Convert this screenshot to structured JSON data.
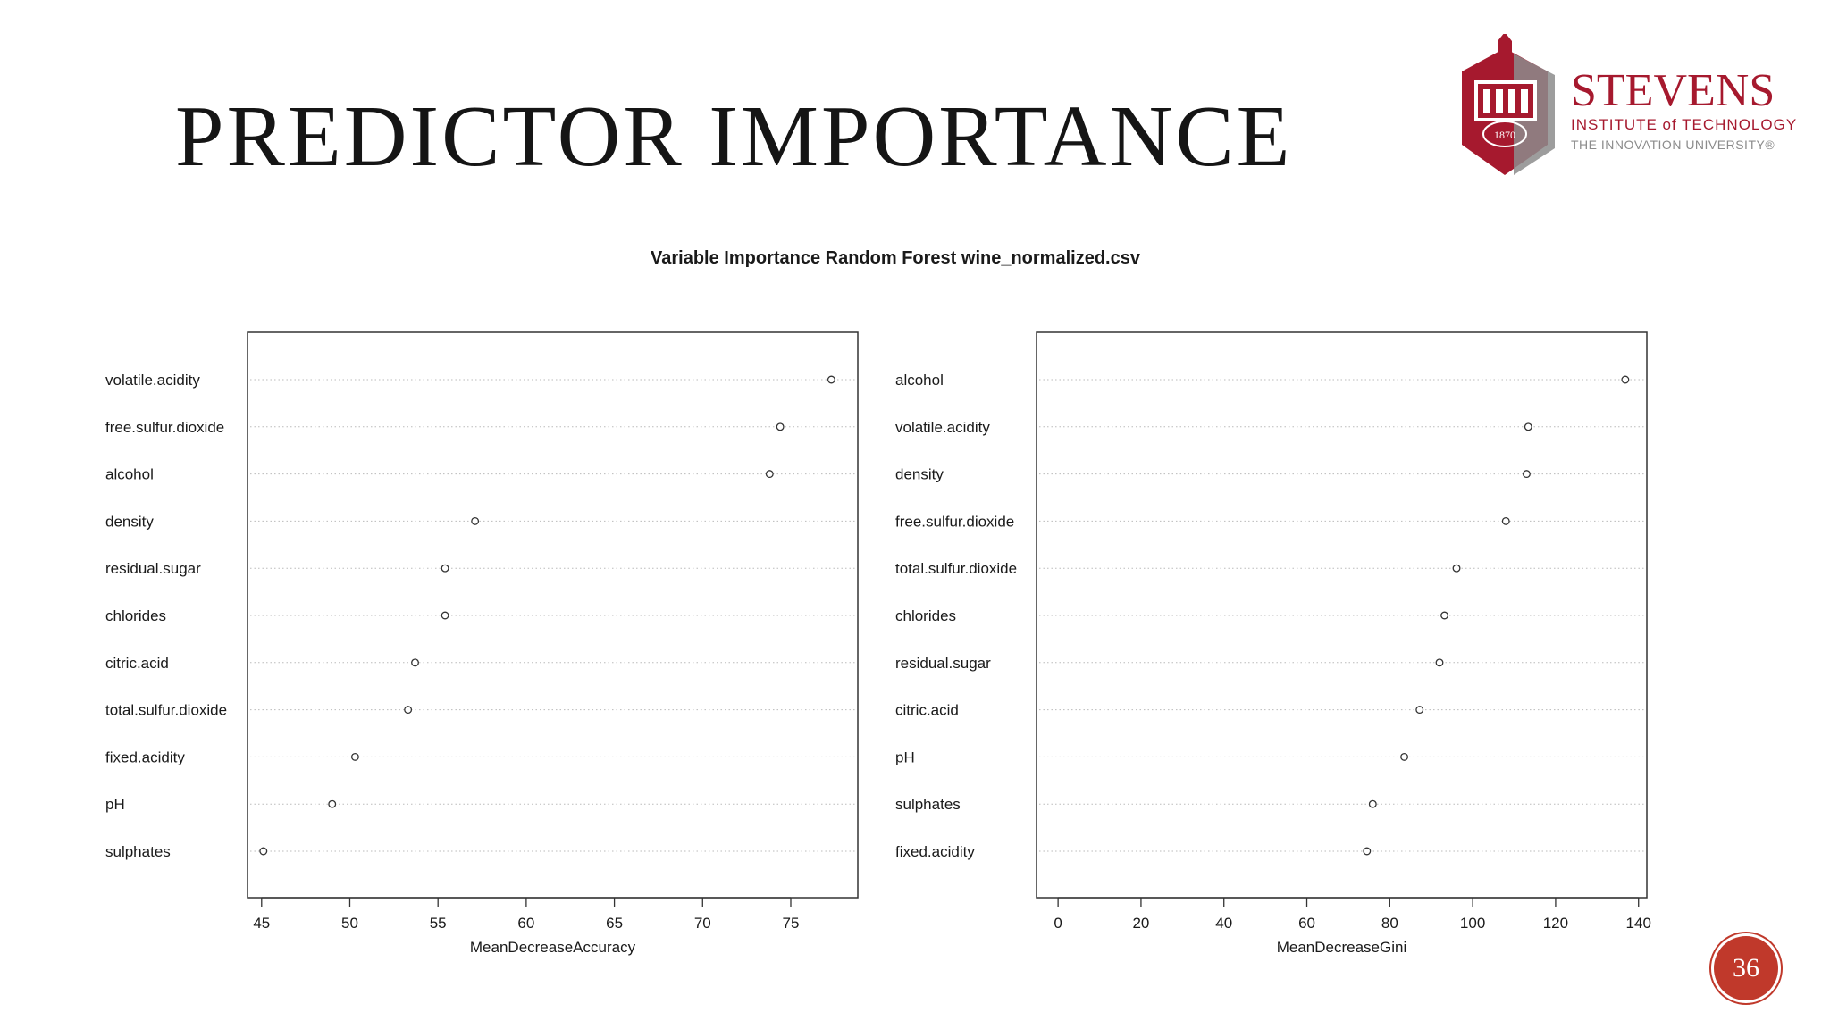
{
  "slide": {
    "title": "PREDICTOR IMPORTANCE",
    "page_number": "36"
  },
  "logo": {
    "name": "STEVENS",
    "line1": "INSTITUTE of TECHNOLOGY",
    "line2": "THE INNOVATION UNIVERSITY®",
    "year": "1870",
    "brand_color": "#a6192e",
    "gray_color": "#8c8c8c"
  },
  "colors": {
    "badge": "#c0392b",
    "title": "#151515"
  },
  "chart_title": "Variable Importance Random Forest wine_normalized.csv",
  "chart_data": [
    {
      "type": "scatter",
      "subtype": "dotchart",
      "title": "Variable Importance Random Forest wine_normalized.csv",
      "xlabel": "MeanDecreaseAccuracy",
      "ylabel": "",
      "xlim": [
        44.2,
        78.8
      ],
      "xticks": [
        45,
        50,
        55,
        60,
        65,
        70,
        75
      ],
      "grid": "dotted horizontal",
      "categories": [
        "volatile.acidity",
        "free.sulfur.dioxide",
        "alcohol",
        "density",
        "residual.sugar",
        "chlorides",
        "citric.acid",
        "total.sulfur.dioxide",
        "fixed.acidity",
        "pH",
        "sulphates"
      ],
      "values": [
        77.3,
        74.4,
        73.8,
        57.1,
        55.4,
        55.4,
        53.7,
        53.3,
        50.3,
        49.0,
        45.1
      ]
    },
    {
      "type": "scatter",
      "subtype": "dotchart",
      "title": "Variable Importance Random Forest wine_normalized.csv",
      "xlabel": "MeanDecreaseGini",
      "ylabel": "",
      "xlim": [
        -5.2,
        142.0
      ],
      "xticks": [
        0,
        20,
        40,
        60,
        80,
        100,
        120,
        140
      ],
      "grid": "dotted horizontal",
      "categories": [
        "alcohol",
        "volatile.acidity",
        "density",
        "free.sulfur.dioxide",
        "total.sulfur.dioxide",
        "chlorides",
        "residual.sugar",
        "citric.acid",
        "pH",
        "sulphates",
        "fixed.acidity"
      ],
      "values": [
        136.8,
        113.4,
        113.0,
        108.0,
        96.1,
        93.2,
        92.0,
        87.2,
        83.5,
        75.9,
        74.5
      ]
    }
  ]
}
